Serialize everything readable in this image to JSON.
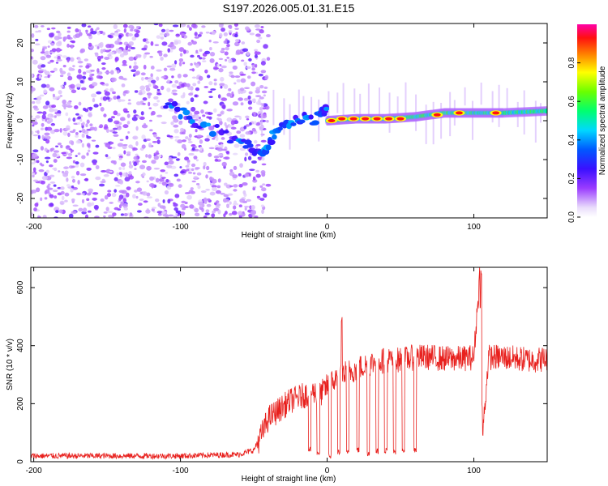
{
  "title": "S197.2026.005.01.31.E15",
  "colors": {
    "snr_line": "#e8211e",
    "spec_low": "#d9c7f2",
    "spec_mid": "#7a16ff",
    "spec_high": "#ff2020",
    "frame": "#000000"
  },
  "chart_data": [
    {
      "id": "spectrogram",
      "type": "heatmap",
      "title": "S197.2026.005.01.31.E15",
      "xlabel": "Height of straight line (km)",
      "ylabel": "Frequency (Hz)",
      "xlim": [
        -202,
        150
      ],
      "ylim": [
        -25,
        25
      ],
      "xticks": [
        -200,
        -100,
        0,
        100
      ],
      "xtick_labels": [
        "-200",
        "-100",
        "0",
        "100"
      ],
      "yticks": [
        -20,
        -10,
        0,
        10,
        20
      ],
      "ytick_labels": [
        "-20",
        "-10",
        "0",
        "10",
        "20"
      ],
      "colorbar": {
        "label": "Normalized spectral amplitude",
        "range": [
          0,
          1
        ],
        "ticks": [
          0.0,
          0.2,
          0.4,
          0.6,
          0.8
        ],
        "tick_labels": [
          "0.0",
          "0.2",
          "0.4",
          "0.6",
          "0.8"
        ],
        "colormap": "purple-blue-cyan-green-yellow-red-magenta"
      },
      "description_points": {
        "noise_region_x": [
          -202,
          -50
        ],
        "converging_track": [
          [
            -110,
            5
          ],
          [
            -90,
            0
          ],
          [
            -60,
            -5
          ],
          [
            -45,
            -8
          ],
          [
            -35,
            -3
          ],
          [
            -20,
            0
          ],
          [
            -5,
            1
          ],
          [
            0,
            3
          ]
        ],
        "carrier_track": [
          [
            0,
            0
          ],
          [
            20,
            0.5
          ],
          [
            40,
            0.5
          ],
          [
            60,
            1
          ],
          [
            80,
            2
          ],
          [
            100,
            2
          ],
          [
            120,
            2
          ],
          [
            150,
            2.5
          ]
        ]
      }
    },
    {
      "id": "snr",
      "type": "line",
      "xlabel": "Height of straight line (km)",
      "ylabel": "SNR (10 * v/v)",
      "xlim": [
        -202,
        150
      ],
      "ylim": [
        0,
        670
      ],
      "xticks": [
        -200,
        -100,
        0,
        100
      ],
      "xtick_labels": [
        "-200",
        "-100",
        "0",
        "100"
      ],
      "yticks": [
        0,
        200,
        400,
        600
      ],
      "ytick_labels": [
        "0",
        "200",
        "400",
        "600"
      ],
      "series": [
        {
          "name": "SNR",
          "x": [
            -202,
            -150,
            -100,
            -60,
            -50,
            -45,
            -40,
            -35,
            -30,
            -25,
            -20,
            -15,
            -10,
            -5,
            0,
            5,
            10,
            15,
            20,
            25,
            30,
            35,
            40,
            45,
            50,
            55,
            60,
            70,
            80,
            90,
            100,
            104,
            106,
            110,
            120,
            130,
            140,
            150
          ],
          "values": [
            20,
            20,
            20,
            25,
            40,
            90,
            150,
            170,
            190,
            210,
            220,
            230,
            240,
            230,
            260,
            280,
            300,
            310,
            320,
            330,
            340,
            345,
            350,
            350,
            350,
            355,
            360,
            360,
            355,
            355,
            360,
            640,
            90,
            360,
            360,
            355,
            350,
            355
          ]
        }
      ],
      "dropouts": [
        {
          "x": -12,
          "min": 30
        },
        {
          "x": -6,
          "min": 20
        },
        {
          "x": 2,
          "min": 10
        },
        {
          "x": 8,
          "min": 25
        },
        {
          "x": 14,
          "min": 20
        },
        {
          "x": 21,
          "min": 30
        },
        {
          "x": 28,
          "min": 20
        },
        {
          "x": 34,
          "min": 25
        },
        {
          "x": 40,
          "min": 30
        },
        {
          "x": 46,
          "min": 25
        },
        {
          "x": 52,
          "min": 30
        },
        {
          "x": 60,
          "min": 30
        }
      ],
      "spikes": [
        {
          "x": 10,
          "value": 500
        },
        {
          "x": 105,
          "value": 660
        }
      ]
    }
  ]
}
